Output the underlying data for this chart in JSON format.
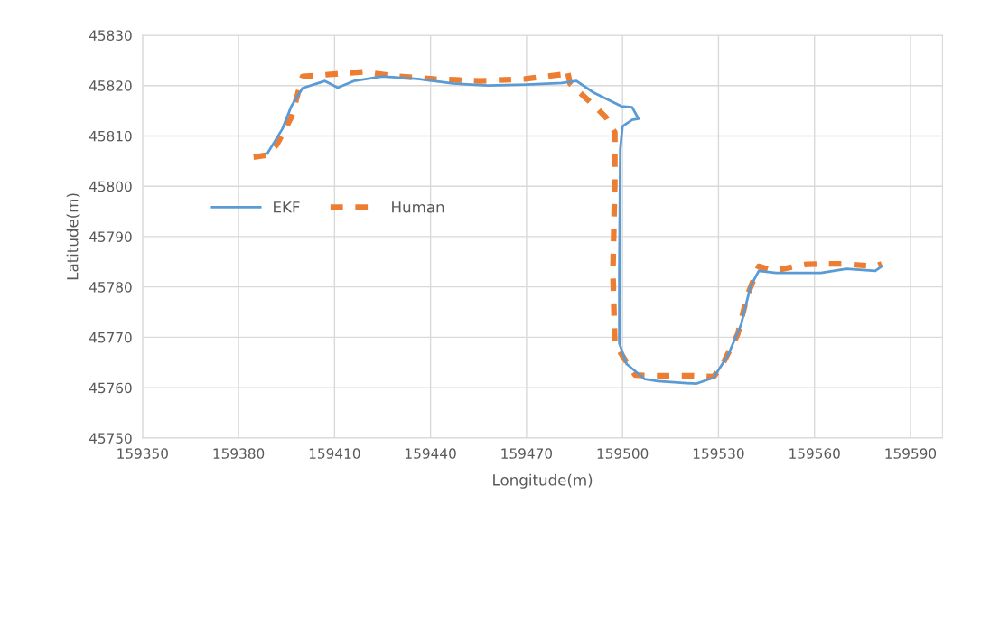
{
  "chart_data": {
    "type": "line",
    "xlabel": "Longitude(m)",
    "ylabel": "Latitude(m)",
    "xlim": [
      159350,
      159600
    ],
    "xticks": [
      159350,
      159380,
      159410,
      159440,
      159470,
      159500,
      159530,
      159560,
      159590
    ],
    "ylim": [
      45750,
      45830
    ],
    "yticks": [
      45750,
      45760,
      45770,
      45780,
      45790,
      45800,
      45810,
      45820,
      45830
    ],
    "grid": true,
    "legend": "left",
    "marker": "none",
    "series": [
      {
        "name": "EKF",
        "color": "#5b9bd5",
        "line_style": "solid",
        "x": [
          159389,
          159393.7,
          159396.5,
          159400,
          159407,
          159411,
          159416,
          159425,
          159436,
          159447,
          159458,
          159470,
          159481,
          159485.6,
          159491,
          159499.6,
          159503,
          159505,
          159503,
          159500,
          159499.3,
          159499,
          159499,
          159501.3,
          159507,
          159511,
          159523,
          159528.5,
          159533,
          159537,
          159540,
          159542.6,
          159548,
          159562,
          159570,
          159579,
          159581
        ],
        "values": [
          45806.5,
          45811.4,
          45815.9,
          45819.5,
          45820.9,
          45819.6,
          45820.9,
          45821.8,
          45821.3,
          45820.4,
          45820,
          45820.2,
          45820.5,
          45820.9,
          45818.6,
          45815.9,
          45815.7,
          45813.4,
          45813.2,
          45811.9,
          45807.4,
          45783,
          45768.8,
          45764.7,
          45761.7,
          45761.3,
          45760.8,
          45762,
          45766.5,
          45772.4,
          45780.1,
          45783.2,
          45782.8,
          45782.8,
          45783.6,
          45783.2,
          45784.1
        ]
      },
      {
        "name": "Human",
        "color": "#ed7d31",
        "line_style": "dashed",
        "x": [
          159384.7,
          159389,
          159392,
          159396.5,
          159400,
          159410.5,
          159419,
          159430,
          159441,
          159455.5,
          159469.5,
          159481,
          159482.7,
          159483.6,
          159492,
          159494.8,
          159497.6,
          159497.6,
          159497,
          159497.6,
          159500.5,
          159504,
          159508,
          159522,
          159528.5,
          159531,
          159536,
          159539,
          159542.6,
          159547,
          159557.5,
          159568.7,
          159579,
          159581
        ],
        "values": [
          45805.8,
          45806.2,
          45808.3,
          45813.7,
          45821.8,
          45822.3,
          45822.7,
          45821.8,
          45821.3,
          45820.9,
          45821.3,
          45822.2,
          45823.2,
          45820.4,
          45815.5,
          45813.7,
          45810.7,
          45801,
          45783,
          45768.8,
          45765.8,
          45762.5,
          45762.4,
          45762.4,
          45762.2,
          45764.3,
          45770.6,
          45778.3,
          45784.1,
          45783.2,
          45784.5,
          45784.6,
          45784.1,
          45784.6
        ]
      }
    ]
  }
}
